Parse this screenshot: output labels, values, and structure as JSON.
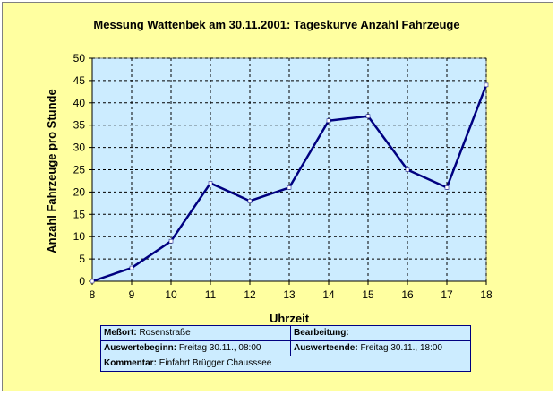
{
  "chart_data": {
    "type": "line",
    "title": "Messung Wattenbek am 30.11.2001: Tageskurve Anzahl Fahrzeuge",
    "xlabel": "Uhrzeit",
    "ylabel": "Anzahl Fahrzeuge pro Stunde",
    "x": [
      8,
      9,
      10,
      11,
      12,
      13,
      14,
      15,
      16,
      17,
      18
    ],
    "series": [
      {
        "values": [
          0,
          3,
          9,
          22,
          18,
          21,
          36,
          37,
          25,
          21,
          44
        ]
      }
    ],
    "xlim": [
      8,
      18
    ],
    "ylim": [
      0,
      50
    ],
    "yticks": [
      0,
      5,
      10,
      15,
      20,
      25,
      30,
      35,
      40,
      45,
      50
    ],
    "grid": "dashed",
    "legend": "none",
    "colors": {
      "background": "#ffffa0",
      "plot_area": "#ccecff",
      "line": "#000080",
      "grid": "#000000",
      "marker": "#ffffff"
    }
  },
  "info": {
    "messort_label": "Meßort:",
    "messort_value": "Rosenstraße",
    "bearbeitung_label": "Bearbeitung:",
    "bearbeitung_value": "",
    "beginn_label": "Auswertebeginn:",
    "beginn_value": "Freitag 30.11., 08:00",
    "ende_label": "Auswerteende:",
    "ende_value": "Freitag 30.11., 18:00",
    "kommentar_label": "Kommentar:",
    "kommentar_value": "Einfahrt Brügger Chausssee"
  }
}
